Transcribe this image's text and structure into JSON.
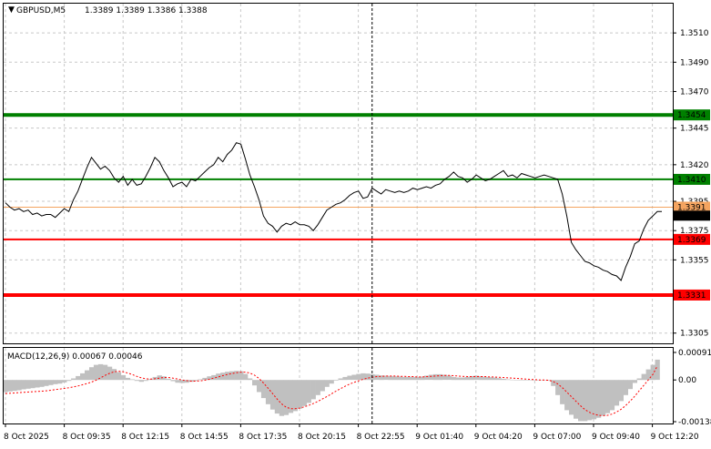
{
  "header": {
    "symbol_label": "GBPUSD,M5",
    "ohlc_text": "1.3389 1.3389 1.3386 1.3388",
    "menu_glyph": "▼"
  },
  "macd": {
    "label": "MACD(12,26,9) 0.00067 0.00046"
  },
  "colors": {
    "background": "#ffffff",
    "frame": "#000000",
    "grid": "#c8c8c8",
    "price_line": "#000000",
    "support_line": "#ff0000",
    "resistance_line": "#008000",
    "bid_line": "#f4a460",
    "histogram": "#c0c0c0",
    "signal_line": "#ff0000",
    "crosshair": "#000000"
  },
  "chart_data": [
    {
      "type": "line",
      "title": "GBPUSD,M5",
      "x_tick_labels": [
        "8 Oct 2025",
        "8 Oct 09:35",
        "8 Oct 12:15",
        "8 Oct 14:55",
        "8 Oct 17:35",
        "8 Oct 20:15",
        "8 Oct 22:55",
        "9 Oct 01:40",
        "9 Oct 04:20",
        "9 Oct 07:00",
        "9 Oct 09:40",
        "9 Oct 12:20"
      ],
      "y_tick_labels": [
        "1.3510",
        "1.3490",
        "1.3470",
        "1.3445",
        "1.3420",
        "1.3395",
        "1.3375",
        "1.3355",
        "1.3305"
      ],
      "y_ticks": [
        1.351,
        1.349,
        1.347,
        1.3445,
        1.342,
        1.3395,
        1.3375,
        1.3355,
        1.3305
      ],
      "ylim": [
        1.3298,
        1.353
      ],
      "grid": true,
      "levels": [
        {
          "name": "resistance",
          "value": 1.3454,
          "label": "1.3454",
          "color": "#008000"
        },
        {
          "name": "resistance",
          "value": 1.341,
          "label": "1.3410",
          "color": "#008000"
        },
        {
          "name": "support",
          "value": 1.3369,
          "label": "1.3369",
          "color": "#ff0000"
        },
        {
          "name": "support",
          "value": 1.3331,
          "label": "1.3331",
          "color": "#ff0000"
        }
      ],
      "bid_line": {
        "value": 1.3391,
        "label": "1.3391"
      },
      "last_price": {
        "value": 1.3388,
        "label": "1.3388"
      },
      "x_index_range": [
        0,
        145
      ],
      "crosshair_index": 81,
      "series": [
        {
          "values": [
            1.3394,
            1.3391,
            1.3389,
            1.339,
            1.3388,
            1.3389,
            1.3386,
            1.3387,
            1.3385,
            1.3386,
            1.3386,
            1.3384,
            1.3387,
            1.339,
            1.3388,
            1.3396,
            1.3402,
            1.341,
            1.3418,
            1.3425,
            1.3421,
            1.3417,
            1.3419,
            1.3416,
            1.3411,
            1.3408,
            1.3412,
            1.3406,
            1.341,
            1.3406,
            1.3407,
            1.3412,
            1.3418,
            1.3425,
            1.3422,
            1.3416,
            1.3411,
            1.3405,
            1.3407,
            1.3408,
            1.3405,
            1.341,
            1.3409,
            1.3412,
            1.3415,
            1.3418,
            1.342,
            1.3425,
            1.3422,
            1.3427,
            1.343,
            1.3435,
            1.3434,
            1.3424,
            1.3413,
            1.3405,
            1.3396,
            1.3385,
            1.338,
            1.3378,
            1.3374,
            1.3378,
            1.338,
            1.3379,
            1.3381,
            1.3379,
            1.3379,
            1.3378,
            1.3375,
            1.3379,
            1.3384,
            1.3389,
            1.3391,
            1.3393,
            1.3394,
            1.3396,
            1.3399,
            1.3401,
            1.3402,
            1.3397,
            1.3398,
            1.3404,
            1.3402,
            1.34,
            1.3403,
            1.3402,
            1.3401,
            1.3402,
            1.3401,
            1.3402,
            1.3404,
            1.3403,
            1.3404,
            1.3405,
            1.3404,
            1.3406,
            1.3407,
            1.341,
            1.3412,
            1.3415,
            1.3412,
            1.3411,
            1.3408,
            1.341,
            1.3413,
            1.3411,
            1.3409,
            1.341,
            1.3412,
            1.3414,
            1.3416,
            1.3412,
            1.3413,
            1.3411,
            1.3414,
            1.3413,
            1.3412,
            1.3411,
            1.3412,
            1.3413,
            1.3412,
            1.3411,
            1.341,
            1.34,
            1.3385,
            1.3367,
            1.3362,
            1.3358,
            1.3354,
            1.3353,
            1.3351,
            1.335,
            1.3348,
            1.3347,
            1.3345,
            1.3344,
            1.3341,
            1.335,
            1.3357,
            1.3366,
            1.3368,
            1.3376,
            1.3382,
            1.3385,
            1.3388,
            1.3388
          ]
        }
      ]
    },
    {
      "type": "bar",
      "title": "MACD(12,26,9) 0.00067 0.00046",
      "y_tick_labels": [
        "0.00091",
        "0.00",
        "-0.00138"
      ],
      "y_ticks": [
        0.00091,
        0.0,
        -0.00138
      ],
      "ylim": [
        -0.00144,
        0.00106
      ],
      "series": [
        {
          "name": "MACD",
          "values": [
            -0.0004,
            -0.00038,
            -0.00036,
            -0.00034,
            -0.00031,
            -0.00029,
            -0.00027,
            -0.00025,
            -0.00023,
            -0.0002,
            -0.00017,
            -0.00014,
            -0.00012,
            -8e-05,
            -3e-05,
            5e-05,
            0.00013,
            0.00022,
            0.00032,
            0.00042,
            0.0005,
            0.00052,
            0.0005,
            0.00044,
            0.00036,
            0.00026,
            0.00016,
            7e-05,
            2e-05,
            -3e-05,
            -6e-05,
            -3e-05,
            3e-05,
            0.0001,
            0.00015,
            0.00012,
            4e-05,
            -4e-05,
            -9e-05,
            -0.0001,
            -9e-05,
            -6e-05,
            -3e-05,
            2e-05,
            7e-05,
            0.00012,
            0.00016,
            0.00021,
            0.00024,
            0.00027,
            0.00029,
            0.0003,
            0.00029,
            0.0002,
            5e-05,
            -0.00018,
            -0.0004,
            -0.0006,
            -0.0008,
            -0.00098,
            -0.00111,
            -0.00119,
            -0.00116,
            -0.00109,
            -0.00103,
            -0.00095,
            -0.00086,
            -0.00076,
            -0.00064,
            -0.0005,
            -0.00037,
            -0.00023,
            -0.00012,
            -2e-05,
            5e-05,
            0.0001,
            0.00014,
            0.00017,
            0.0002,
            0.00022,
            0.00021,
            0.00019,
            0.00017,
            0.00015,
            0.00014,
            0.00013,
            0.00012,
            0.00011,
            0.0001,
            0.0001,
            0.0001,
            0.0001,
            0.00011,
            0.00014,
            0.00017,
            0.00019,
            0.00019,
            0.00017,
            0.00014,
            0.0001,
            8e-05,
            8e-05,
            0.0001,
            0.00013,
            0.00014,
            0.00012,
            0.0001,
            9e-05,
            8e-05,
            6e-05,
            4e-05,
            2e-05,
            1e-05,
            0.0,
            0.0,
            0.0,
            0.0,
            -1e-05,
            -1e-05,
            -1e-05,
            -2e-05,
            -0.0002,
            -0.0005,
            -0.0008,
            -0.001,
            -0.00115,
            -0.00128,
            -0.00136,
            -0.00136,
            -0.00133,
            -0.0013,
            -0.00125,
            -0.00118,
            -0.0011,
            -0.001,
            -0.00085,
            -0.0007,
            -0.0005,
            -0.0003,
            -0.0001,
            5e-05,
            0.0002,
            0.00035,
            0.0005,
            0.00067
          ]
        },
        {
          "name": "Signal",
          "values": [
            -0.00045,
            -0.00044,
            -0.00043,
            -0.00042,
            -0.00041,
            -0.0004,
            -0.00039,
            -0.00038,
            -0.00037,
            -0.00036,
            -0.00034,
            -0.00032,
            -0.0003,
            -0.00028,
            -0.00026,
            -0.00023,
            -0.0002,
            -0.00016,
            -0.00012,
            -7e-05,
            -1e-05,
            7e-05,
            0.00015,
            0.00022,
            0.00027,
            0.00029,
            0.00027,
            0.00023,
            0.00018,
            0.00012,
            7e-05,
            4e-05,
            3e-05,
            4e-05,
            6e-05,
            8e-05,
            8e-05,
            6e-05,
            3e-05,
            0.0,
            -2e-05,
            -4e-05,
            -4e-05,
            -3e-05,
            -1e-05,
            2e-05,
            6e-05,
            0.0001,
            0.00014,
            0.00018,
            0.00021,
            0.00024,
            0.00026,
            0.00026,
            0.00023,
            0.00016,
            5e-05,
            -0.0001,
            -0.00027,
            -0.00045,
            -0.00063,
            -0.00079,
            -0.0009,
            -0.00095,
            -0.00095,
            -0.00093,
            -0.00089,
            -0.00084,
            -0.00078,
            -0.00071,
            -0.00063,
            -0.00055,
            -0.00046,
            -0.00037,
            -0.00029,
            -0.00021,
            -0.00014,
            -8e-05,
            -3e-05,
            2e-05,
            6e-05,
            9e-05,
            0.00011,
            0.00012,
            0.00013,
            0.00013,
            0.00013,
            0.00012,
            0.00012,
            0.00011,
            0.00011,
            0.0001,
            0.0001,
            0.00011,
            0.00012,
            0.00013,
            0.00014,
            0.00015,
            0.00015,
            0.00014,
            0.00013,
            0.00012,
            0.00011,
            0.00011,
            0.00011,
            0.00011,
            0.00011,
            0.0001,
            0.0001,
            9e-05,
            8e-05,
            7e-05,
            6e-05,
            5e-05,
            4e-05,
            3e-05,
            2e-05,
            1e-05,
            0.0,
            0.0,
            -1e-05,
            -5e-05,
            -0.00013,
            -0.00025,
            -0.0004,
            -0.00055,
            -0.0007,
            -0.00085,
            -0.00098,
            -0.00107,
            -0.00113,
            -0.00117,
            -0.00118,
            -0.00117,
            -0.00113,
            -0.00106,
            -0.00097,
            -0.00085,
            -0.0007,
            -0.00054,
            -0.00036,
            -0.00018,
            0.0,
            0.00018,
            0.00046
          ]
        }
      ]
    }
  ]
}
